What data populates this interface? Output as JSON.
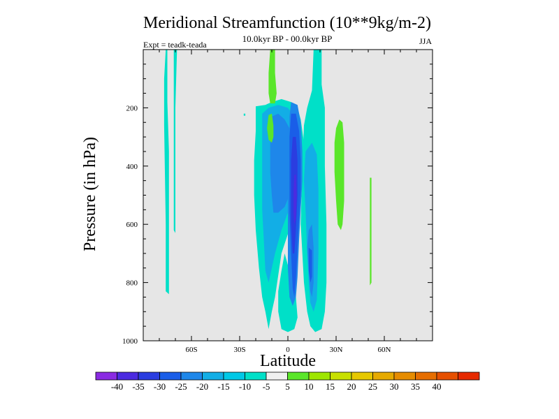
{
  "chart_data": {
    "type": "heatmap",
    "title": "Meridional Streamfunction (10**9kg/m-2)",
    "subtitle": "10.0kyr BP - 00.0kyr BP",
    "left_label": "Expt = teadk-teada",
    "right_label": "JJA",
    "xlabel": "Latitude",
    "ylabel": "Pressure (in hPa)",
    "xlim": [
      -90,
      90
    ],
    "ylim": [
      0,
      1000
    ],
    "y_reversed": true,
    "x_ticks": [
      -60,
      -30,
      0,
      30,
      60
    ],
    "x_tick_labels": [
      "60S",
      "30S",
      "0",
      "30N",
      "60N"
    ],
    "y_ticks": [
      200,
      400,
      600,
      800,
      1000
    ],
    "y_tick_labels": [
      "200",
      "400",
      "600",
      "800",
      "1000"
    ],
    "background_color": "#e6e6e6",
    "colorbar": {
      "colors": [
        "#8a2be2",
        "#4b2be0",
        "#2b3de0",
        "#1a5ee8",
        "#1e87ea",
        "#12aee6",
        "#00c8e6",
        "#00e0c8",
        "#f0f0f0",
        "#5ae62a",
        "#9ee600",
        "#c8e000",
        "#e6c800",
        "#e6aa00",
        "#e68c00",
        "#e66e00",
        "#e65000",
        "#e62a00"
      ],
      "labels": [
        "-40",
        "-35",
        "-30",
        "-25",
        "-20",
        "-15",
        "-10",
        "-5",
        "5",
        "10",
        "15",
        "20",
        "25",
        "30",
        "35",
        "40"
      ]
    },
    "regions": [
      {
        "level": -5,
        "color": "#00e0c8",
        "points": [
          [
            -20,
            195
          ],
          [
            -14,
            190
          ],
          [
            -10,
            180
          ],
          [
            -4,
            170
          ],
          [
            2,
            180
          ],
          [
            6,
            200
          ],
          [
            8,
            240
          ],
          [
            10,
            320
          ],
          [
            10,
            420
          ],
          [
            6,
            500
          ],
          [
            2,
            600
          ],
          [
            -4,
            700
          ],
          [
            -8,
            850
          ],
          [
            -10,
            900
          ],
          [
            -12,
            960
          ],
          [
            -14,
            900
          ],
          [
            -16,
            850
          ],
          [
            -18,
            750
          ],
          [
            -20,
            620
          ],
          [
            -21,
            500
          ],
          [
            -21,
            380
          ],
          [
            -20,
            280
          ]
        ]
      },
      {
        "level": -5,
        "color": "#00e0c8",
        "points": [
          [
            -2,
            700
          ],
          [
            2,
            780
          ],
          [
            5,
            850
          ],
          [
            6,
            920
          ],
          [
            4,
            960
          ],
          [
            0,
            970
          ],
          [
            -4,
            960
          ],
          [
            -6,
            900
          ],
          [
            -6,
            830
          ],
          [
            -4,
            760
          ]
        ]
      },
      {
        "level": -5,
        "color": "#00e0c8",
        "points": [
          [
            16,
            0
          ],
          [
            21,
            0
          ],
          [
            21,
            120
          ],
          [
            23,
            200
          ],
          [
            23,
            400
          ],
          [
            24,
            600
          ],
          [
            24,
            800
          ],
          [
            23,
            900
          ],
          [
            21,
            960
          ],
          [
            17,
            970
          ],
          [
            14,
            950
          ],
          [
            12,
            900
          ],
          [
            10,
            800
          ],
          [
            8,
            600
          ],
          [
            9,
            400
          ],
          [
            10,
            260
          ],
          [
            12,
            200
          ],
          [
            15,
            140
          ]
        ]
      },
      {
        "level": -5,
        "color": "#00e0c8",
        "points": [
          [
            -76,
            0
          ],
          [
            -75,
            0
          ],
          [
            -75,
            180
          ],
          [
            -74,
            350
          ],
          [
            -74,
            700
          ],
          [
            -74,
            840
          ],
          [
            -76,
            830
          ],
          [
            -76,
            600
          ],
          [
            -77,
            260
          ],
          [
            -77,
            100
          ]
        ]
      },
      {
        "level": -5,
        "color": "#00e0c8",
        "points": [
          [
            -71,
            0
          ],
          [
            -69,
            0
          ],
          [
            -70,
            200
          ],
          [
            -70,
            400
          ],
          [
            -70,
            630
          ],
          [
            -71,
            620
          ],
          [
            -71,
            300
          ],
          [
            -71,
            150
          ]
        ]
      },
      {
        "level": -5,
        "color": "#00e0c8",
        "points": [
          [
            -27.5,
            220
          ],
          [
            -26.5,
            220
          ],
          [
            -26.5,
            227
          ],
          [
            -27.5,
            227
          ]
        ]
      },
      {
        "level": -10,
        "color": "#12aee6",
        "points": [
          [
            -16,
            220
          ],
          [
            -12,
            200
          ],
          [
            -6,
            190
          ],
          [
            0,
            200
          ],
          [
            4,
            230
          ],
          [
            6,
            300
          ],
          [
            6,
            420
          ],
          [
            4,
            500
          ],
          [
            0,
            560
          ],
          [
            -4,
            620
          ],
          [
            -8,
            700
          ],
          [
            -12,
            800
          ],
          [
            -14,
            760
          ],
          [
            -15,
            650
          ],
          [
            -16,
            550
          ],
          [
            -16,
            400
          ],
          [
            -16,
            300
          ]
        ]
      },
      {
        "level": -10,
        "color": "#12aee6",
        "points": [
          [
            11,
            350
          ],
          [
            15,
            320
          ],
          [
            18,
            360
          ],
          [
            19,
            480
          ],
          [
            19,
            700
          ],
          [
            18,
            860
          ],
          [
            16,
            900
          ],
          [
            14,
            870
          ],
          [
            13,
            800
          ],
          [
            12,
            700
          ],
          [
            11,
            550
          ],
          [
            10,
            450
          ]
        ]
      },
      {
        "level": -15,
        "color": "#1e87ea",
        "points": [
          [
            -10,
            230
          ],
          [
            -6,
            220
          ],
          [
            -2,
            240
          ],
          [
            2,
            280
          ],
          [
            3,
            360
          ],
          [
            3,
            440
          ],
          [
            1,
            500
          ],
          [
            -2,
            540
          ],
          [
            -6,
            560
          ],
          [
            -9,
            560
          ],
          [
            -10,
            500
          ],
          [
            -11,
            420
          ],
          [
            -11,
            320
          ]
        ]
      },
      {
        "level": -15,
        "color": "#1e87ea",
        "points": [
          [
            2,
            180
          ],
          [
            6,
            190
          ],
          [
            8,
            250
          ],
          [
            9,
            350
          ],
          [
            9,
            450
          ],
          [
            8,
            550
          ],
          [
            7,
            650
          ],
          [
            6,
            780
          ],
          [
            5,
            850
          ],
          [
            3,
            880
          ],
          [
            1,
            850
          ],
          [
            0,
            750
          ],
          [
            0,
            600
          ],
          [
            0,
            450
          ],
          [
            1,
            330
          ],
          [
            1,
            230
          ]
        ]
      },
      {
        "level": -15,
        "color": "#1e87ea",
        "points": [
          [
            13,
            620
          ],
          [
            15,
            600
          ],
          [
            16,
            680
          ],
          [
            16,
            800
          ],
          [
            15,
            850
          ],
          [
            14,
            830
          ],
          [
            13,
            760
          ],
          [
            12,
            680
          ]
        ]
      },
      {
        "level": -20,
        "color": "#1a5ee8",
        "points": [
          [
            2,
            220
          ],
          [
            5,
            220
          ],
          [
            7,
            280
          ],
          [
            8,
            380
          ],
          [
            8,
            480
          ],
          [
            7,
            580
          ],
          [
            6,
            680
          ],
          [
            5,
            790
          ],
          [
            4,
            850
          ],
          [
            3,
            820
          ],
          [
            2,
            700
          ],
          [
            1,
            560
          ],
          [
            1,
            420
          ],
          [
            1,
            300
          ]
        ]
      },
      {
        "level": -20,
        "color": "#1a5ee8",
        "points": [
          [
            13,
            680
          ],
          [
            15,
            690
          ],
          [
            15,
            780
          ],
          [
            14,
            800
          ],
          [
            13,
            760
          ]
        ]
      },
      {
        "level": -25,
        "color": "#2b3de0",
        "points": [
          [
            3,
            300
          ],
          [
            5,
            300
          ],
          [
            6,
            380
          ],
          [
            6,
            500
          ],
          [
            5,
            620
          ],
          [
            4,
            700
          ],
          [
            3,
            700
          ],
          [
            2,
            600
          ],
          [
            2,
            480
          ],
          [
            2,
            380
          ]
        ]
      },
      {
        "level": -30,
        "color": "#4b2be0",
        "points": [
          [
            4,
            430
          ],
          [
            5,
            430
          ],
          [
            5.5,
            500
          ],
          [
            5,
            580
          ],
          [
            4,
            600
          ],
          [
            3.5,
            560
          ],
          [
            3.5,
            480
          ]
        ]
      },
      {
        "level": 5,
        "color": "#5ae62a",
        "points": [
          [
            -11,
            0
          ],
          [
            -8,
            0
          ],
          [
            -8,
            80
          ],
          [
            -7,
            150
          ],
          [
            -8,
            185
          ],
          [
            -11,
            185
          ],
          [
            -12,
            150
          ],
          [
            -12,
            80
          ]
        ]
      },
      {
        "level": 5,
        "color": "#5ae62a",
        "points": [
          [
            -12,
            225
          ],
          [
            -10,
            220
          ],
          [
            -9,
            260
          ],
          [
            -9,
            300
          ],
          [
            -10,
            320
          ],
          [
            -12,
            310
          ],
          [
            -13,
            270
          ]
        ]
      },
      {
        "level": 5,
        "color": "#5ae62a",
        "points": [
          [
            30,
            270
          ],
          [
            32,
            240
          ],
          [
            34,
            250
          ],
          [
            35,
            320
          ],
          [
            35,
            420
          ],
          [
            35,
            520
          ],
          [
            34,
            600
          ],
          [
            33,
            620
          ],
          [
            31,
            600
          ],
          [
            30,
            520
          ],
          [
            29,
            420
          ],
          [
            29,
            320
          ]
        ]
      },
      {
        "level": 5,
        "color": "#5ae62a",
        "points": [
          [
            51,
            440
          ],
          [
            52,
            440
          ],
          [
            52,
            560
          ],
          [
            52,
            700
          ],
          [
            52,
            800
          ],
          [
            51,
            810
          ],
          [
            51,
            700
          ],
          [
            51,
            550
          ]
        ]
      }
    ]
  }
}
